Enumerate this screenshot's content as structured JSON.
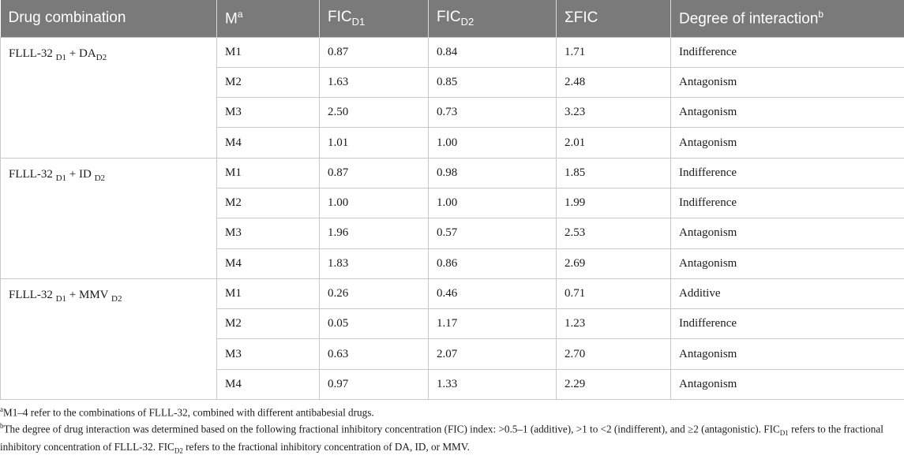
{
  "header": {
    "col1": "Drug combination",
    "col2": "M",
    "col2_sup": "a",
    "col3": "FIC",
    "col3_sub": "D1",
    "col4": "FIC",
    "col4_sub": "D2",
    "col5": "ΣFIC",
    "col6": "Degree of interaction",
    "col6_sup": "b"
  },
  "groups": [
    {
      "drug": "FLLL-32",
      "sub1": "D1",
      "plus": "+",
      "partner": "DA",
      "sub2": "D2",
      "rows": [
        {
          "m": "M1",
          "d1": "0.87",
          "d2": "0.84",
          "sum": "1.71",
          "degree": "Indifference"
        },
        {
          "m": "M2",
          "d1": "1.63",
          "d2": "0.85",
          "sum": "2.48",
          "degree": "Antagonism"
        },
        {
          "m": "M3",
          "d1": "2.50",
          "d2": "0.73",
          "sum": "3.23",
          "degree": "Antagonism"
        },
        {
          "m": "M4",
          "d1": "1.01",
          "d2": "1.00",
          "sum": "2.01",
          "degree": "Antagonism"
        }
      ]
    },
    {
      "drug": "FLLL-32",
      "sub1": "D1",
      "plus": "+",
      "partner": "ID",
      "sub2": "D2",
      "rows": [
        {
          "m": "M1",
          "d1": "0.87",
          "d2": "0.98",
          "sum": "1.85",
          "degree": "Indifference"
        },
        {
          "m": "M2",
          "d1": "1.00",
          "d2": "1.00",
          "sum": "1.99",
          "degree": "Indifference"
        },
        {
          "m": "M3",
          "d1": "1.96",
          "d2": "0.57",
          "sum": "2.53",
          "degree": "Antagonism"
        },
        {
          "m": "M4",
          "d1": "1.83",
          "d2": "0.86",
          "sum": "2.69",
          "degree": "Antagonism"
        }
      ]
    },
    {
      "drug": "FLLL-32",
      "sub1": "D1",
      "plus": "+",
      "partner": "MMV",
      "sub2": "D2",
      "rows": [
        {
          "m": "M1",
          "d1": "0.26",
          "d2": "0.46",
          "sum": "0.71",
          "degree": "Additive"
        },
        {
          "m": "M2",
          "d1": "0.05",
          "d2": "1.17",
          "sum": "1.23",
          "degree": "Indifference"
        },
        {
          "m": "M3",
          "d1": "0.63",
          "d2": "2.07",
          "sum": "2.70",
          "degree": "Antagonism"
        },
        {
          "m": "M4",
          "d1": "0.97",
          "d2": "1.33",
          "sum": "2.29",
          "degree": "Antagonism"
        }
      ]
    }
  ],
  "footnotes": {
    "a_mark": "a",
    "a_text": "M1–4 refer to the combinations of FLLL-32, combined with different antibabesial drugs.",
    "b_mark": "b",
    "b_text1": "The degree of drug interaction was determined based on the following fractional inhibitory concentration (FIC) index: >0.5–1 (additive), >1 to <2 (indifferent), and ≥2 (antagonistic). FIC",
    "b_sub1": "D1",
    "b_text2": " refers to the fractional inhibitory concentration of FLLL-32. FIC",
    "b_sub2": "D2",
    "b_text3": " refers to the fractional inhibitory concentration of DA, ID, or MMV."
  }
}
